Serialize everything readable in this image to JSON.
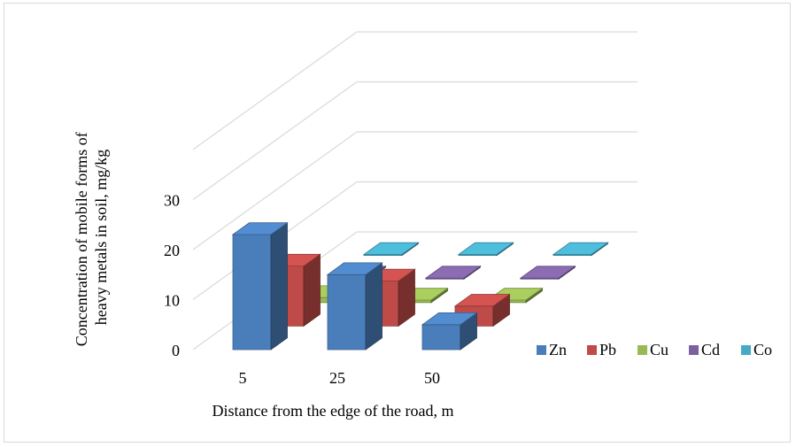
{
  "chart_data": {
    "type": "bar",
    "subtype": "3d-column",
    "title": "",
    "xlabel": "Distance from the edge of the road, m",
    "ylabel": "Concentration of mobile forms of heavy metals in soil, mg/kg",
    "categories": [
      "5",
      "25",
      "50"
    ],
    "y_ticks": [
      "0",
      "10",
      "20",
      "30"
    ],
    "ylim": [
      0,
      30
    ],
    "grid": true,
    "legend_position": "bottom-right",
    "series": [
      {
        "name": "Zn",
        "color": "#4a7ebb",
        "values": [
          23,
          15,
          5
        ]
      },
      {
        "name": "Pb",
        "color": "#be4b48",
        "values": [
          12,
          9,
          4
        ]
      },
      {
        "name": "Cu",
        "color": "#98b954",
        "values": [
          1,
          0.5,
          0.5
        ]
      },
      {
        "name": "Cd",
        "color": "#7d60a0",
        "values": [
          0.2,
          0.2,
          0.2
        ]
      },
      {
        "name": "Co",
        "color": "#46aac5",
        "values": [
          0.2,
          0.2,
          0.2
        ]
      }
    ]
  }
}
